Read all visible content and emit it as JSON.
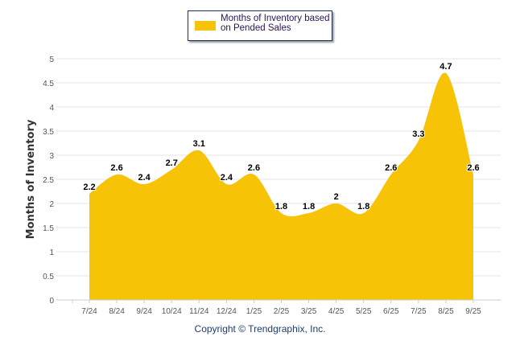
{
  "chart_data": {
    "type": "area",
    "title": "",
    "xlabel": "",
    "ylabel": "Months of Inventory",
    "ylim": [
      0,
      5
    ],
    "yticks": [
      "0",
      "0.5",
      "1",
      "1.5",
      "2",
      "2.5",
      "3",
      "3.5",
      "4",
      "4.5",
      "5"
    ],
    "grid": true,
    "legend_position": "top-center",
    "categories": [
      "7/24",
      "8/24",
      "9/24",
      "10/24",
      "11/24",
      "12/24",
      "1/25",
      "2/25",
      "3/25",
      "4/25",
      "5/25",
      "6/25",
      "7/25",
      "8/25",
      "9/25"
    ],
    "series": [
      {
        "name": "Months of Inventory based on Pended Sales",
        "values": [
          2.2,
          2.6,
          2.4,
          2.7,
          3.1,
          2.4,
          2.6,
          1.8,
          1.8,
          2,
          1.8,
          2.6,
          3.3,
          4.7,
          2.6
        ],
        "labels": [
          "2.2",
          "2.6",
          "2.4",
          "2.7",
          "3.1",
          "2.4",
          "2.6",
          "1.8",
          "1.8",
          "2",
          "1.8",
          "2.6",
          "3.3",
          "4.7",
          "2.6"
        ],
        "color": "#F7C307"
      }
    ]
  },
  "legend": {
    "label_line1": "Months of Inventory based",
    "label_line2": "on Pended Sales"
  },
  "footer": {
    "copyright": "Copyright © Trendgraphix, Inc."
  }
}
